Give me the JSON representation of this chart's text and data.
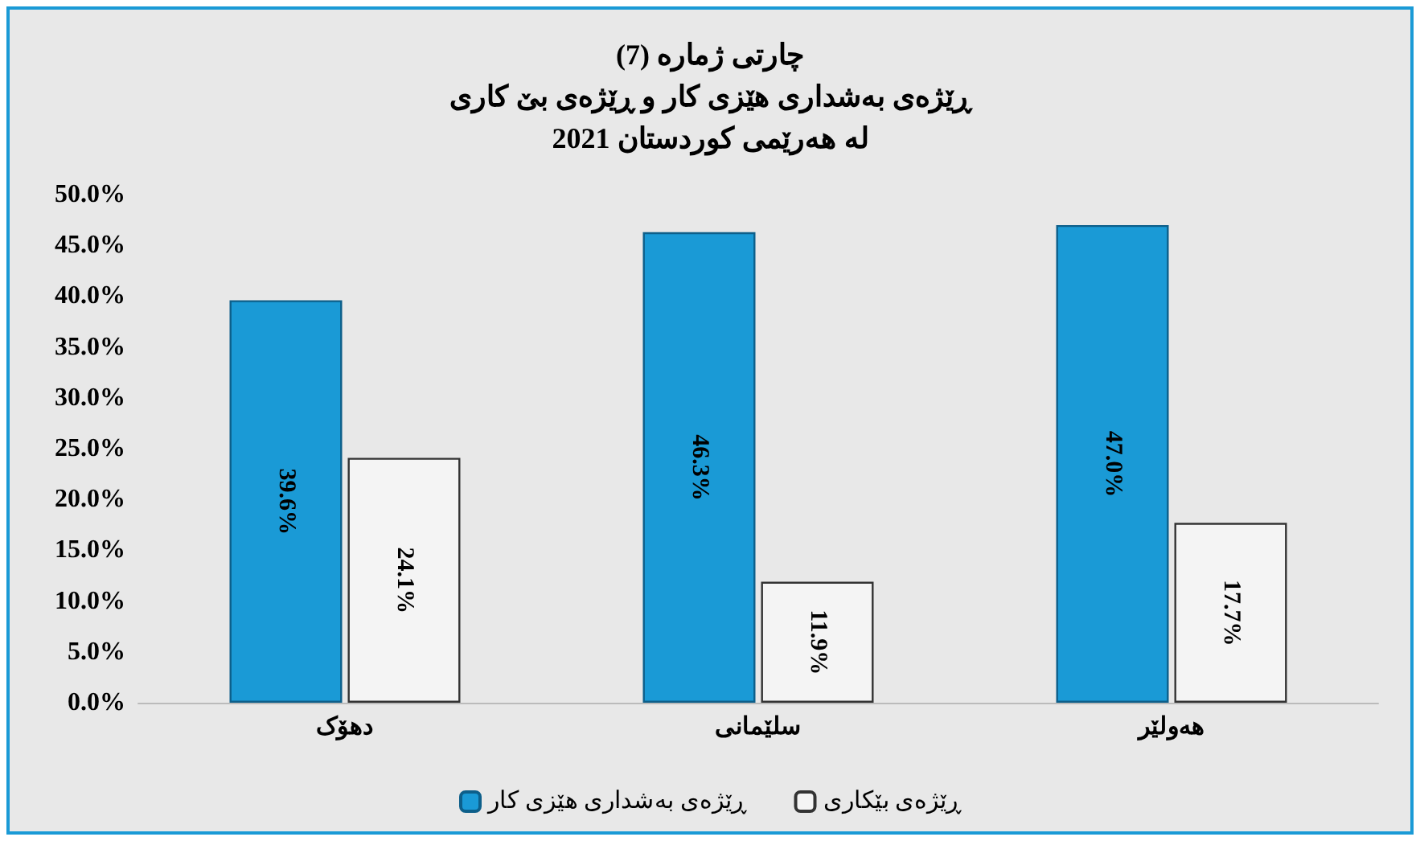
{
  "chart_data": {
    "type": "bar",
    "title": "چارتی ژمارە (7)\nڕێژەی بەشداری هێزی کار و ڕێژەی بێ کاری\nلە هەرێمی کوردستان 2021",
    "categories": [
      "دهۆک",
      "سلێمانی",
      "هەولێر"
    ],
    "series": [
      {
        "name": "ڕێژەی بەشداری هێزی کار",
        "color": "#1a9ad6",
        "values": [
          39.6,
          46.3,
          47.0
        ],
        "value_labels": [
          "39.6%",
          "46.3%",
          "47.0%"
        ]
      },
      {
        "name": "ڕێژەی بێکاری",
        "color": "#f4f4f4",
        "values": [
          24.1,
          11.9,
          17.7
        ],
        "value_labels": [
          "24.1%",
          "11.9%",
          "17.7%"
        ]
      }
    ],
    "ylim": [
      0,
      50
    ],
    "yticks": [
      {
        "value": 0,
        "label": "0.0%"
      },
      {
        "value": 5,
        "label": "5.0%"
      },
      {
        "value": 10,
        "label": "10.0%"
      },
      {
        "value": 15,
        "label": "15.0%"
      },
      {
        "value": 20,
        "label": "20.0%"
      },
      {
        "value": 25,
        "label": "25.0%"
      },
      {
        "value": 30,
        "label": "30.0%"
      },
      {
        "value": 35,
        "label": "35.0%"
      },
      {
        "value": 40,
        "label": "40.0%"
      },
      {
        "value": 45,
        "label": "45.0%"
      },
      {
        "value": 50,
        "label": "50.0%"
      }
    ],
    "grid": false,
    "legend": "bottom"
  }
}
